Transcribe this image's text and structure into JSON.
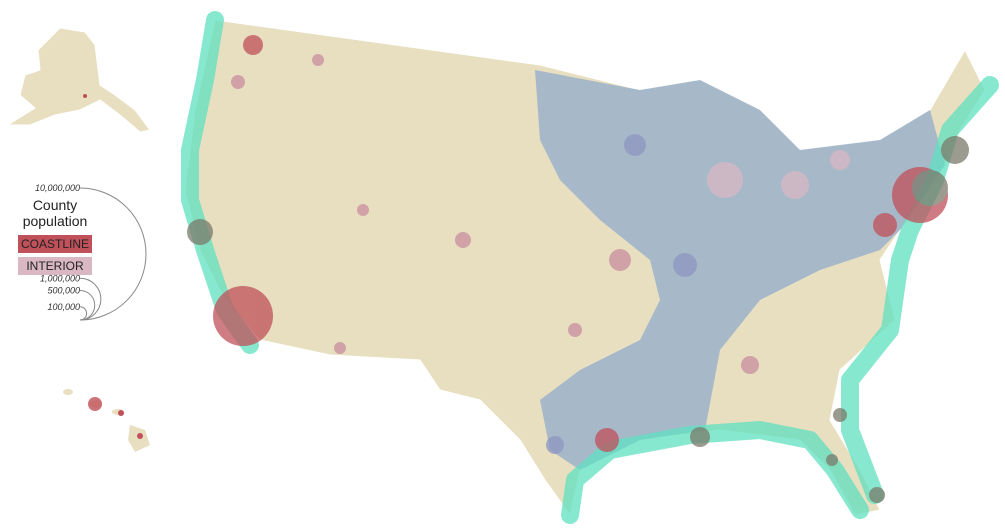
{
  "legend": {
    "title": "County population",
    "categories": [
      {
        "label": "COASTLINE",
        "color": "#c0505a"
      },
      {
        "label": "INTERIOR",
        "color": "#d9b8c4"
      }
    ],
    "sizes": [
      {
        "value": 10000000,
        "label": "10,000,000"
      },
      {
        "value": 1000000,
        "label": "1,000,000"
      },
      {
        "value": 500000,
        "label": "500,000"
      },
      {
        "value": 100000,
        "label": "100,000"
      }
    ]
  }
}
